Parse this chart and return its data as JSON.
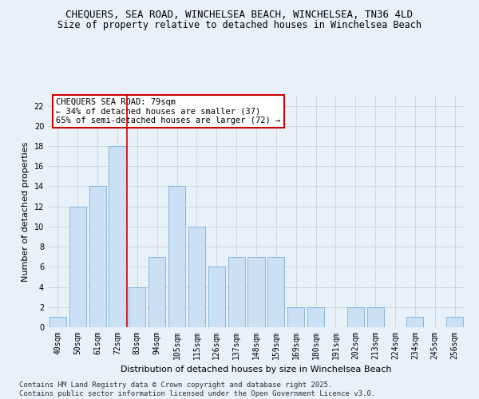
{
  "title_line1": "CHEQUERS, SEA ROAD, WINCHELSEA BEACH, WINCHELSEA, TN36 4LD",
  "title_line2": "Size of property relative to detached houses in Winchelsea Beach",
  "xlabel": "Distribution of detached houses by size in Winchelsea Beach",
  "ylabel": "Number of detached properties",
  "categories": [
    "40sqm",
    "50sqm",
    "61sqm",
    "72sqm",
    "83sqm",
    "94sqm",
    "105sqm",
    "115sqm",
    "126sqm",
    "137sqm",
    "148sqm",
    "159sqm",
    "169sqm",
    "180sqm",
    "191sqm",
    "202sqm",
    "213sqm",
    "224sqm",
    "234sqm",
    "245sqm",
    "256sqm"
  ],
  "values": [
    1,
    12,
    14,
    18,
    4,
    7,
    14,
    10,
    6,
    7,
    7,
    7,
    2,
    2,
    0,
    2,
    2,
    0,
    1,
    0,
    1
  ],
  "bar_color": "#cce0f5",
  "bar_edgecolor": "#7ab0d8",
  "grid_color": "#cccccc",
  "background_color": "#e8f0f8",
  "annotation_box_color": "#ffffff",
  "annotation_border_color": "#cc0000",
  "property_line_color": "#cc0000",
  "property_line_index": 3,
  "ylim": [
    0,
    23
  ],
  "yticks": [
    0,
    2,
    4,
    6,
    8,
    10,
    12,
    14,
    16,
    18,
    20,
    22
  ],
  "annotation_text_line1": "CHEQUERS SEA ROAD: 79sqm",
  "annotation_text_line2": "← 34% of detached houses are smaller (37)",
  "annotation_text_line3": "65% of semi-detached houses are larger (72) →",
  "footer_line1": "Contains HM Land Registry data © Crown copyright and database right 2025.",
  "footer_line2": "Contains public sector information licensed under the Open Government Licence v3.0.",
  "title_fontsize": 9,
  "subtitle_fontsize": 8.5,
  "axis_label_fontsize": 8,
  "tick_fontsize": 7,
  "annotation_fontsize": 7.5,
  "footer_fontsize": 6.5
}
